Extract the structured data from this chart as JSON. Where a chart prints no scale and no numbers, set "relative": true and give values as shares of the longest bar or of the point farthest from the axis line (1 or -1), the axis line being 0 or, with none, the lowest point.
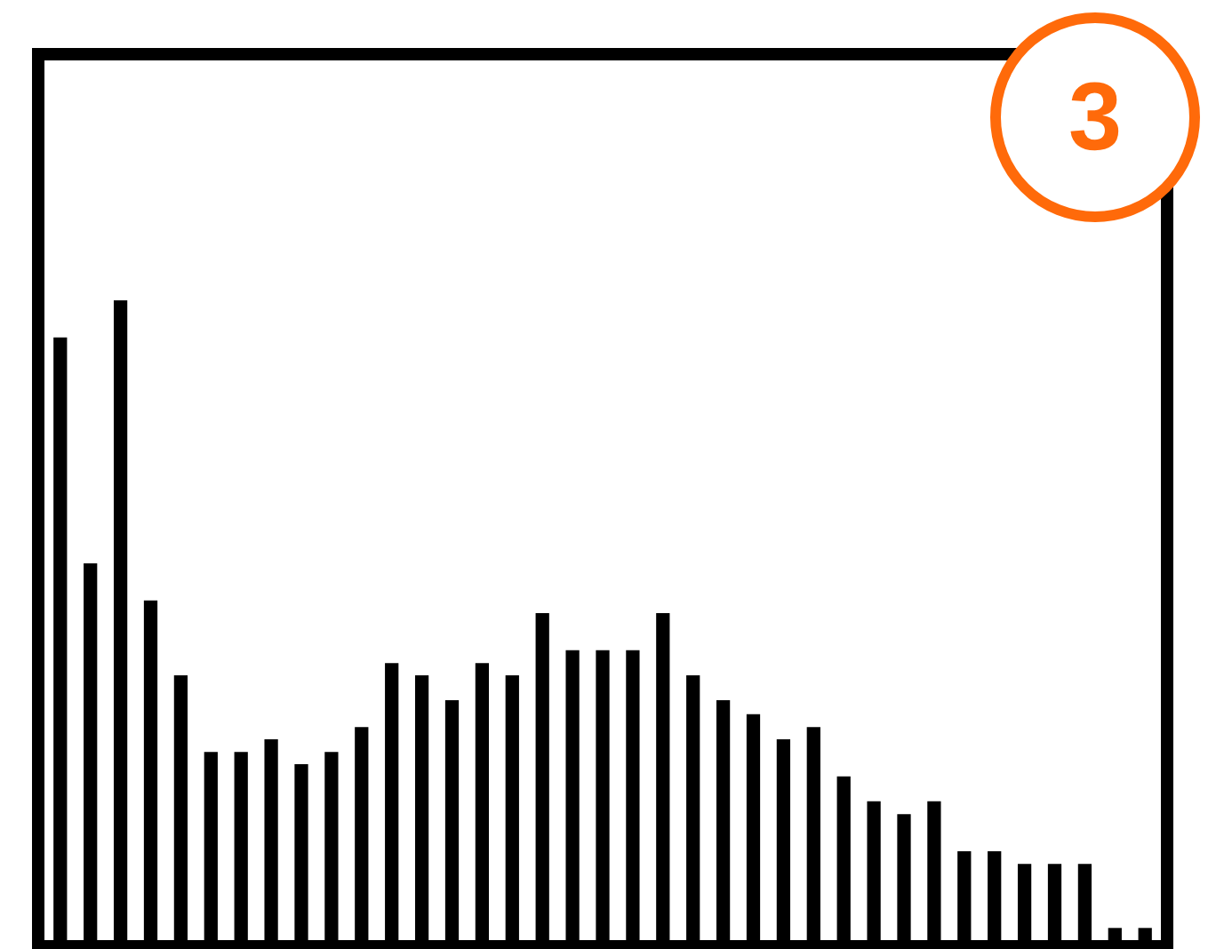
{
  "chart_data": {
    "type": "bar",
    "relative": true,
    "color": "#000000",
    "annotations": [
      "3"
    ],
    "categories": [
      null,
      null,
      null,
      null,
      null,
      null,
      null,
      null,
      null,
      null,
      null,
      null,
      null,
      null,
      null,
      null,
      null,
      null,
      null,
      null,
      null,
      null,
      null,
      null,
      null,
      null,
      null,
      null,
      null,
      null,
      null,
      null,
      null,
      null,
      null,
      null,
      null
    ],
    "values": [
      0.942,
      0.589,
      1,
      0.531,
      0.414,
      0.294,
      0.294,
      0.314,
      0.275,
      0.294,
      0.333,
      0.433,
      0.414,
      0.375,
      0.433,
      0.414,
      0.511,
      0.453,
      0.453,
      0.453,
      0.511,
      0.414,
      0.375,
      0.353,
      0.314,
      0.333,
      0.256,
      0.217,
      0.197,
      0.217,
      0.139,
      0.139,
      0.119,
      0.119,
      0.119,
      0.019,
      0.019
    ]
  }
}
